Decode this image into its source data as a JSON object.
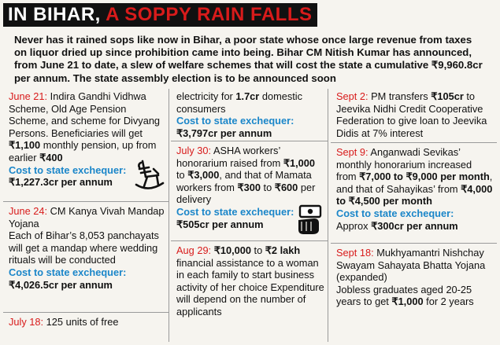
{
  "headline": {
    "part1": "IN BIHAR,",
    "part2": " A SOPPY RAIN FALLS"
  },
  "intro": "Never has it rained sops like now in Bihar, a poor state whose once large revenue from taxes on liquor dried up since prohibition came into being. Bihar CM Nitish Kumar has announced, from June 21 to date, a slew of welfare schemes that will cost the state a cumulative ₹9,960.8cr per annum. The state assembly election is to be announced soon",
  "columns": [
    {
      "entries": [
        {
          "date": "June 21:",
          "text_a": " Indira Gandhi Vidhwa Scheme, Old Age Pension Scheme, and scheme for Divyang Persons. Beneficiaries will get ",
          "bold_a": "₹1,100",
          "text_b": " monthly pension, up from earlier ",
          "bold_b": "₹400",
          "cost_label": "Cost to state exchequer:",
          "cost_value": "₹1,227.3cr per annum"
        },
        {
          "date": "June 24:",
          "text_a": " CM Kanya Vivah Mandap Yojana",
          "text_b": "Each of Bihar’s 8,053 panchayats will get a mandap where wedding rituals will be conducted",
          "cost_label": "Cost to state exchequer:",
          "cost_value": "₹4,026.5cr per annum"
        },
        {
          "date": "July 18:",
          "text_a": " 125 units of free"
        }
      ]
    },
    {
      "entries": [
        {
          "text_a": "electricity for ",
          "bold_a": "1.7cr",
          "text_b": " domestic consumers",
          "cost_label": "Cost to state exchequer:",
          "cost_value": "₹3,797cr per annum"
        },
        {
          "date": "July 30:",
          "text_a": " ASHA workers’ honorarium raised from ",
          "bold_a": "₹1,000",
          "text_b": " to ",
          "bold_b": "₹3,000",
          "text_c": ", and that of Mamata workers from ",
          "bold_c": "₹300",
          "text_d": " to ",
          "bold_d": "₹600",
          "text_e": " per delivery",
          "cost_label": "Cost to state exchequer:",
          "cost_value": "₹505cr per annum"
        },
        {
          "date": "Aug 29:",
          "text_a": " ",
          "bold_a": "₹10,000",
          "text_b": " to ",
          "bold_b": "₹2 lakh",
          "text_c": " financial assistance to a woman in each family to start business activity of her choice Expenditure will depend on the number of applicants"
        }
      ]
    },
    {
      "entries": [
        {
          "date": "Sept 2:",
          "text_a": " PM transfers ",
          "bold_a": "₹105cr",
          "text_b": " to Jeevika Nidhi Credit Cooperative Federation to give loan to Jeevika Didis at 7% interest"
        },
        {
          "date": "Sept 9:",
          "text_a": " Anganwadi Sevikas’ monthly honorarium increased from ",
          "bold_a": "₹7,000 to ₹9,000 per month",
          "text_b": ", and that of Sahayikas’ from ",
          "bold_b": "₹4,000 to ₹4,500 per month",
          "cost_label": "Cost to state exchequer:",
          "cost_prefix": "Approx ",
          "cost_value": "₹300cr per annum"
        },
        {
          "date": "Sept 18:",
          "text_a": " Mukhyamantri Nishchay Swayam Sahayata Bhatta Yojana (expanded)",
          "text_b": "Jobless graduates aged 20-25 years to get ",
          "bold_b": "₹1,000",
          "text_c": " for 2 years"
        }
      ]
    }
  ],
  "icons": {
    "rocking_chair": "rocking-chair-icon",
    "money_hand": "money-hand-icon"
  },
  "colors": {
    "accent_red": "#d81b1b",
    "cost_blue": "#1b86c9",
    "headline_bg": "#111111"
  }
}
